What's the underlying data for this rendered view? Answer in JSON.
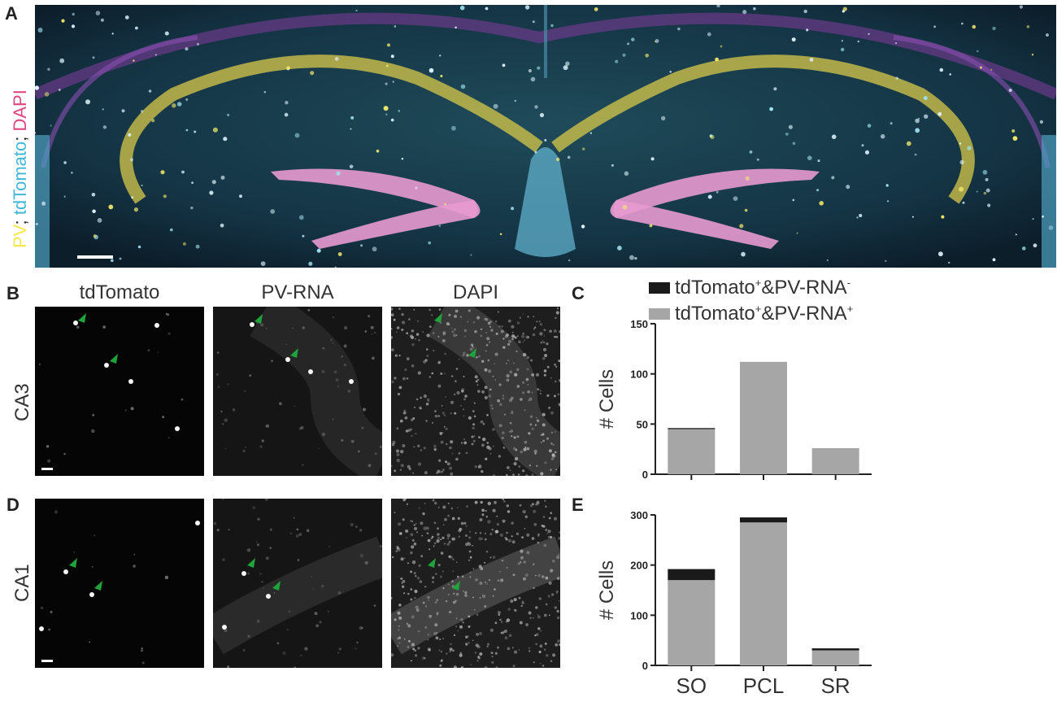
{
  "panel_letters": {
    "a": "A",
    "b": "B",
    "c": "C",
    "d": "D",
    "e": "E"
  },
  "panel_a": {
    "stain_label": [
      {
        "text": "PV",
        "color": "#f5e94a"
      },
      {
        "text": "; ",
        "color": "#222222"
      },
      {
        "text": "tdTomato",
        "color": "#3fb8d8"
      },
      {
        "text": "; ",
        "color": "#222222"
      },
      {
        "text": "DAPI",
        "color": "#e0457f"
      }
    ]
  },
  "columns": {
    "tdtomato": "tdTomato",
    "pv_rna": "PV-RNA",
    "dapi": "DAPI"
  },
  "rows": {
    "ca3": "CA3",
    "ca1": "CA1"
  },
  "legend": {
    "neg": {
      "base": "tdTomato",
      "sup1": "+",
      "mid": "&PV-RNA",
      "sup2": "-",
      "color": "#1a1a1a"
    },
    "pos": {
      "base": "tdTomato",
      "sup1": "+",
      "mid": "&PV-RNA",
      "sup2": "+",
      "color": "#a6a6a6"
    }
  },
  "chart_data": [
    {
      "type": "bar",
      "panel": "C",
      "categories": [
        "SO",
        "PCL",
        "SR"
      ],
      "ylabel": "# Cells",
      "ylim": [
        0,
        150
      ],
      "yticks": [
        0,
        50,
        100,
        150
      ],
      "stacked": true,
      "show_category_labels": false,
      "series": [
        {
          "name": "tdTomato+&PV-RNA+",
          "values": [
            45,
            112,
            26
          ],
          "color": "#a6a6a6"
        },
        {
          "name": "tdTomato+&PV-RNA-",
          "values": [
            1,
            0,
            0
          ],
          "color": "#1a1a1a"
        }
      ]
    },
    {
      "type": "bar",
      "panel": "E",
      "categories": [
        "SO",
        "PCL",
        "SR"
      ],
      "ylabel": "# Cells",
      "ylim": [
        0,
        300
      ],
      "yticks": [
        0,
        100,
        200,
        300
      ],
      "stacked": true,
      "show_category_labels": true,
      "series": [
        {
          "name": "tdTomato+&PV-RNA+",
          "values": [
            170,
            285,
            30
          ],
          "color": "#a6a6a6"
        },
        {
          "name": "tdTomato+&PV-RNA-",
          "values": [
            22,
            10,
            4
          ],
          "color": "#1a1a1a"
        }
      ]
    }
  ]
}
